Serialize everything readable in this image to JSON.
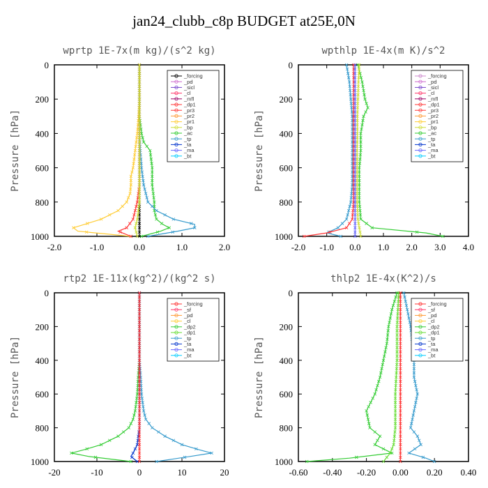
{
  "page_title": "jan24_clubb_c8p  BUDGET at25E,0N",
  "chart_data": [
    {
      "type": "line",
      "title": "wprtp  1E-7x(m kg)/(s^2 kg)",
      "ylabel": "Pressure [hPa]",
      "xlim": [
        -2.0,
        2.0
      ],
      "ylim": [
        1000,
        0
      ],
      "xticks": [
        "-2.0",
        "-1.0",
        "0.0",
        "1.0",
        "2.0"
      ],
      "yticks": [
        "0",
        "200",
        "400",
        "600",
        "800",
        "1000"
      ],
      "legend": [
        "_forcing",
        "_pd",
        "_sicl",
        "_cl",
        "_mfl",
        "_dp1",
        "_pr3",
        "_pr2",
        "_pr1",
        "_bp",
        "_ac",
        "_tp",
        "_ta",
        "_ma",
        "_bt"
      ],
      "legend_colors": [
        "#000000",
        "#cc66cc",
        "#7744cc",
        "#ff3366",
        "#990066",
        "#ff3333",
        "#ff3333",
        "#ff9933",
        "#ffcc33",
        "#ccdd33",
        "#33cc33",
        "#3399cc",
        "#0033cc",
        "#6666ff",
        "#00ccff"
      ],
      "series": [
        {
          "name": "_forcing",
          "color": "#000000",
          "p": [
            0,
            100,
            200,
            300,
            400,
            500,
            600,
            700,
            800,
            900,
            950,
            1000
          ],
          "v": [
            0,
            0,
            0,
            0,
            0,
            0,
            0,
            0,
            0,
            0,
            0,
            0
          ]
        },
        {
          "name": "_pr1",
          "color": "#ffcc33",
          "p": [
            0,
            100,
            200,
            300,
            400,
            500,
            600,
            650,
            700,
            750,
            800,
            850,
            900,
            950,
            970,
            1000
          ],
          "v": [
            0,
            0,
            0,
            -0.02,
            -0.05,
            -0.1,
            -0.15,
            -0.2,
            -0.2,
            -0.22,
            -0.3,
            -0.5,
            -0.9,
            -1.55,
            -1.45,
            -0.2
          ]
        },
        {
          "name": "_ac",
          "color": "#33cc33",
          "p": [
            0,
            100,
            200,
            300,
            400,
            450,
            500,
            600,
            700,
            800,
            850,
            900,
            930,
            950,
            970,
            1000
          ],
          "v": [
            0,
            0,
            0,
            0,
            0.05,
            0.1,
            0.25,
            0.3,
            0.3,
            0.35,
            0.35,
            0.4,
            0.55,
            0.7,
            0.5,
            0.05
          ]
        },
        {
          "name": "_tp",
          "color": "#3399cc",
          "p": [
            0,
            100,
            200,
            300,
            400,
            500,
            600,
            700,
            800,
            850,
            900,
            930,
            950,
            970,
            1000
          ],
          "v": [
            0,
            0,
            0,
            0,
            0,
            0.02,
            0.05,
            0.1,
            0.2,
            0.4,
            0.8,
            1.3,
            1.3,
            0.9,
            0.2
          ]
        },
        {
          "name": "_dp1",
          "color": "#ff3333",
          "p": [
            0,
            100,
            300,
            500,
            700,
            800,
            900,
            950,
            970,
            1000
          ],
          "v": [
            0,
            0,
            0,
            0,
            0,
            -0.05,
            -0.15,
            -0.3,
            -0.5,
            -0.2
          ]
        },
        {
          "name": "_bp",
          "color": "#ccdd33",
          "p": [
            0,
            200,
            400,
            600,
            800,
            900,
            950,
            1000
          ],
          "v": [
            0,
            0,
            0,
            0,
            0,
            -0.05,
            -0.1,
            -0.05
          ]
        }
      ]
    },
    {
      "type": "line",
      "title": "wpthlp  1E-4x(m K)/s^2",
      "ylabel": "Pressure [hPa]",
      "xlim": [
        -2.0,
        4.0
      ],
      "ylim": [
        1000,
        0
      ],
      "xticks": [
        "-2.0",
        "-1.0",
        "0.0",
        "1.0",
        "2.0",
        "3.0",
        "4.0"
      ],
      "yticks": [
        "0",
        "200",
        "400",
        "600",
        "800",
        "1000"
      ],
      "legend": [
        "_forcing",
        "_pd",
        "_sicl",
        "_cl",
        "_mfl",
        "_dp1",
        "_pr3",
        "_pr2",
        "_pr1",
        "_bp",
        "_ac",
        "_tp",
        "_ta",
        "_ma",
        "_bt"
      ],
      "legend_colors": [
        "#cc88cc",
        "#cc66cc",
        "#7744cc",
        "#ff3366",
        "#990066",
        "#ff3333",
        "#ff3333",
        "#ff9933",
        "#ffcc33",
        "#ccdd33",
        "#33cc33",
        "#3399cc",
        "#0033cc",
        "#6666ff",
        "#00ccff"
      ],
      "series": [
        {
          "name": "_tp",
          "color": "#3399cc",
          "p": [
            0,
            100,
            200,
            300,
            400,
            500,
            600,
            700,
            800,
            900,
            950,
            980,
            1000
          ],
          "v": [
            -0.3,
            -0.2,
            -0.15,
            -0.1,
            -0.1,
            -0.1,
            -0.1,
            -0.1,
            -0.15,
            -0.3,
            -0.6,
            -1.0,
            -0.5
          ]
        },
        {
          "name": "_ac",
          "color": "#33cc33",
          "p": [
            0,
            100,
            200,
            250,
            300,
            400,
            500,
            600,
            700,
            800,
            900,
            950,
            980,
            1000
          ],
          "v": [
            0.1,
            0.25,
            0.35,
            0.45,
            0.3,
            0.2,
            0.2,
            0.15,
            0.15,
            0.15,
            0.2,
            0.6,
            2.5,
            3.1
          ]
        },
        {
          "name": "_bp",
          "color": "#ccdd33",
          "p": [
            0,
            100,
            200,
            300,
            400,
            500,
            600,
            700,
            800,
            900,
            950,
            1000
          ],
          "v": [
            0.15,
            0.12,
            0.1,
            0.08,
            0.08,
            0.07,
            0.07,
            0.07,
            0.07,
            0.1,
            0.15,
            0.2
          ]
        },
        {
          "name": "_dp1",
          "color": "#ff3333",
          "p": [
            0,
            100,
            200,
            300,
            400,
            500,
            600,
            700,
            800,
            900,
            950,
            980,
            1000
          ],
          "v": [
            -0.05,
            -0.05,
            -0.05,
            -0.05,
            -0.05,
            -0.05,
            -0.05,
            -0.05,
            -0.05,
            -0.1,
            -0.3,
            -1.0,
            -1.8
          ]
        },
        {
          "name": "_ma",
          "color": "#6666ff",
          "p": [
            0,
            200,
            400,
            600,
            800,
            1000
          ],
          "v": [
            0,
            0,
            0,
            0,
            0,
            0
          ]
        }
      ]
    },
    {
      "type": "line",
      "title": "rtp2  1E-11x(kg^2)/(kg^2 s)",
      "ylabel": "Pressure [hPa]",
      "xlim": [
        -20,
        20
      ],
      "ylim": [
        1000,
        0
      ],
      "xticks": [
        "-20",
        "-10",
        "0",
        "10",
        "20"
      ],
      "yticks": [
        "0",
        "200",
        "400",
        "600",
        "800",
        "1000"
      ],
      "legend": [
        "_forcing",
        "_sf",
        "_pd",
        "_cl",
        "_dp2",
        "_dp1",
        "_tp",
        "_ta",
        "_ma",
        "_bt"
      ],
      "legend_colors": [
        "#ff3333",
        "#ff3366",
        "#ff9933",
        "#ffcc33",
        "#33cc33",
        "#66dd33",
        "#3399cc",
        "#0033cc",
        "#6666ff",
        "#00ccff"
      ],
      "series": [
        {
          "name": "_dp2",
          "color": "#33cc33",
          "p": [
            0,
            200,
            400,
            500,
            600,
            700,
            750,
            800,
            850,
            900,
            930,
            950,
            970,
            1000
          ],
          "v": [
            0,
            0,
            0,
            -0.3,
            -0.5,
            -1,
            -1.5,
            -2.5,
            -5,
            -9,
            -13,
            -16,
            -12,
            -2
          ]
        },
        {
          "name": "_tp",
          "color": "#3399cc",
          "p": [
            0,
            200,
            400,
            500,
            600,
            700,
            750,
            800,
            850,
            900,
            930,
            950,
            970,
            1000
          ],
          "v": [
            0,
            0,
            0,
            0.3,
            0.5,
            1,
            1.5,
            3,
            6,
            10,
            14,
            17,
            12,
            4
          ]
        },
        {
          "name": "_ta",
          "color": "#0033cc",
          "p": [
            0,
            200,
            400,
            600,
            800,
            900,
            950,
            970,
            1000
          ],
          "v": [
            0,
            0,
            0,
            0,
            0,
            -0.5,
            -1.5,
            -2,
            -0.5
          ]
        },
        {
          "name": "_forcing",
          "color": "#ff3333",
          "p": [
            0,
            100,
            200,
            300,
            400,
            500,
            600,
            700,
            800,
            900,
            1000
          ],
          "v": [
            0,
            0,
            0,
            0,
            0,
            0,
            0,
            0,
            0,
            0,
            0
          ]
        }
      ]
    },
    {
      "type": "line",
      "title": "thlp2  1E-4x(K^2)/s",
      "ylabel": "Pressure [hPa]",
      "xlim": [
        -0.6,
        0.4
      ],
      "ylim": [
        1000,
        0
      ],
      "xticks": [
        "-0.60",
        "-0.40",
        "-0.20",
        "0.00",
        "0.20",
        "0.40"
      ],
      "yticks": [
        "0",
        "200",
        "400",
        "600",
        "800",
        "1000"
      ],
      "legend": [
        "_forcing",
        "_sf",
        "_pd",
        "_cl",
        "_dp2",
        "_dp1",
        "_tp",
        "_ta",
        "_ma",
        "_bt"
      ],
      "legend_colors": [
        "#ff3333",
        "#ff3366",
        "#ff9933",
        "#ffcc33",
        "#33cc33",
        "#66dd33",
        "#3399cc",
        "#0033cc",
        "#6666ff",
        "#00ccff"
      ],
      "series": [
        {
          "name": "_dp2",
          "color": "#33cc33",
          "p": [
            0,
            100,
            200,
            300,
            400,
            500,
            600,
            700,
            800,
            850,
            900,
            950,
            980,
            1000
          ],
          "v": [
            -0.02,
            -0.05,
            -0.07,
            -0.08,
            -0.1,
            -0.12,
            -0.15,
            -0.2,
            -0.18,
            -0.12,
            -0.15,
            -0.05,
            -0.3,
            -0.55
          ]
        },
        {
          "name": "_tp",
          "color": "#3399cc",
          "p": [
            0,
            100,
            200,
            300,
            400,
            500,
            600,
            700,
            800,
            850,
            900,
            950,
            980,
            1000
          ],
          "v": [
            0.02,
            0.04,
            0.06,
            0.07,
            0.08,
            0.08,
            0.1,
            0.08,
            0.06,
            0.1,
            0.12,
            0.05,
            0.15,
            0.2
          ]
        },
        {
          "name": "_dp1",
          "color": "#66dd33",
          "p": [
            0,
            200,
            400,
            600,
            800,
            900,
            950,
            1000
          ],
          "v": [
            -0.01,
            -0.02,
            -0.02,
            -0.03,
            -0.03,
            -0.04,
            -0.06,
            -0.1
          ]
        },
        {
          "name": "_forcing",
          "color": "#ff3333",
          "p": [
            0,
            100,
            200,
            300,
            400,
            500,
            600,
            700,
            800,
            900,
            1000
          ],
          "v": [
            0,
            0,
            0,
            0,
            0,
            0,
            0,
            0,
            0,
            0,
            0
          ]
        }
      ]
    }
  ]
}
